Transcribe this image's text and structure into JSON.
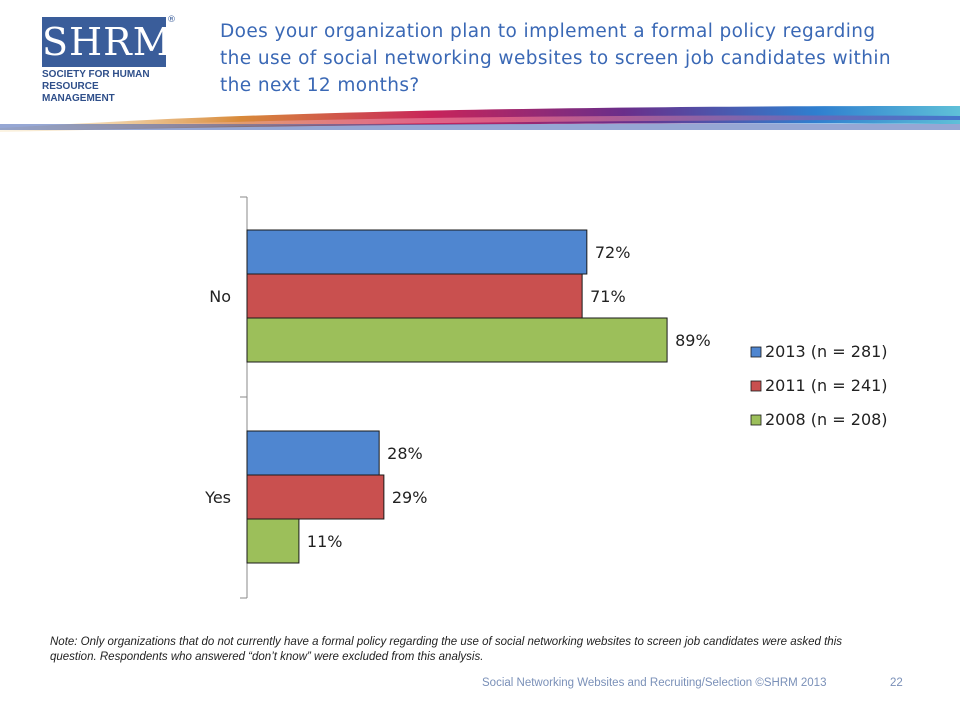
{
  "logo": {
    "mark": "SHRM",
    "line1": "SOCIETY FOR HUMAN",
    "line2": "RESOURCE MANAGEMENT",
    "registered": "®"
  },
  "header": {
    "title": "Does your organization plan to implement a formal policy regarding the use of social networking websites to screen job candidates within the next 12 months?"
  },
  "chart_data": {
    "type": "bar",
    "orientation": "horizontal",
    "categories": [
      "No",
      "Yes"
    ],
    "series": [
      {
        "name": "2013 (n = 281)",
        "values": [
          72,
          28
        ],
        "labels": [
          "72%",
          "28%"
        ],
        "color": "#4f86d0"
      },
      {
        "name": "2011 (n = 241)",
        "values": [
          71,
          29
        ],
        "labels": [
          "71%",
          "29%"
        ],
        "color": "#c9504f"
      },
      {
        "name": "2008 (n = 208)",
        "values": [
          89,
          11
        ],
        "labels": [
          "89%",
          "11%"
        ],
        "color": "#9cbf5a"
      }
    ],
    "xlim": [
      0,
      100
    ],
    "legend": "right",
    "grid": false
  },
  "note": "Note: Only organizations that do not currently have a formal policy regarding the use of social networking websites to screen job candidates were asked this question. Respondents who answered “don’t know” were excluded from this analysis.",
  "footer": {
    "text": "Social Networking Websites and Recruiting/Selection ©SHRM 2013",
    "page": "22"
  }
}
